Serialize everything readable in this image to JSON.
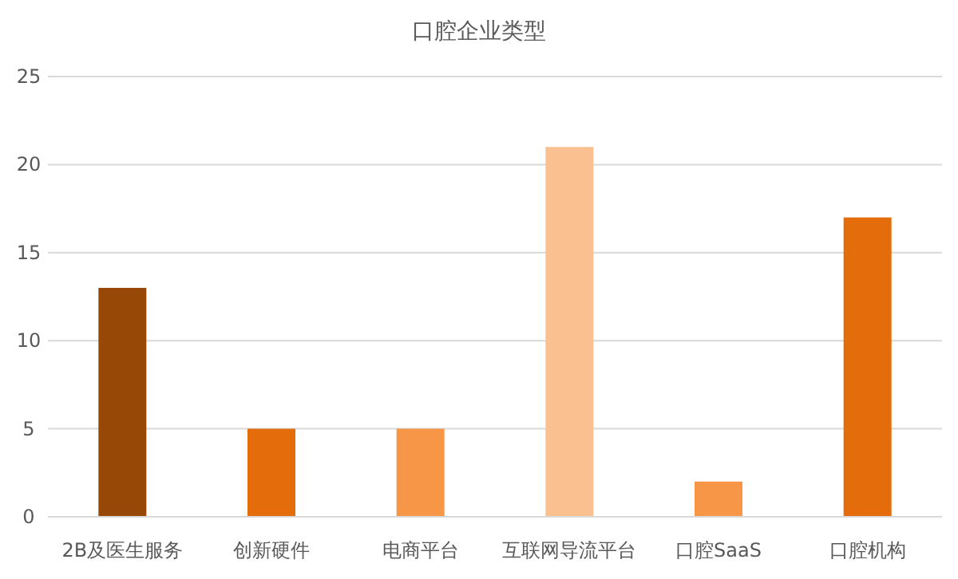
{
  "chart_data": {
    "type": "bar",
    "title": "口腔企业类型",
    "categories": [
      "2B及医生服务",
      "创新硬件",
      "电商平台",
      "互联网导流平台",
      "口腔SaaS",
      "口腔机构"
    ],
    "values": [
      13,
      5,
      5,
      21,
      2,
      17
    ],
    "colors": [
      "#974706",
      "#e46c0a",
      "#f79646",
      "#fac090",
      "#f79646",
      "#e46c0a"
    ],
    "ylim": [
      0,
      25
    ],
    "yticks": [
      0,
      5,
      10,
      15,
      20,
      25
    ],
    "grid": "y"
  }
}
